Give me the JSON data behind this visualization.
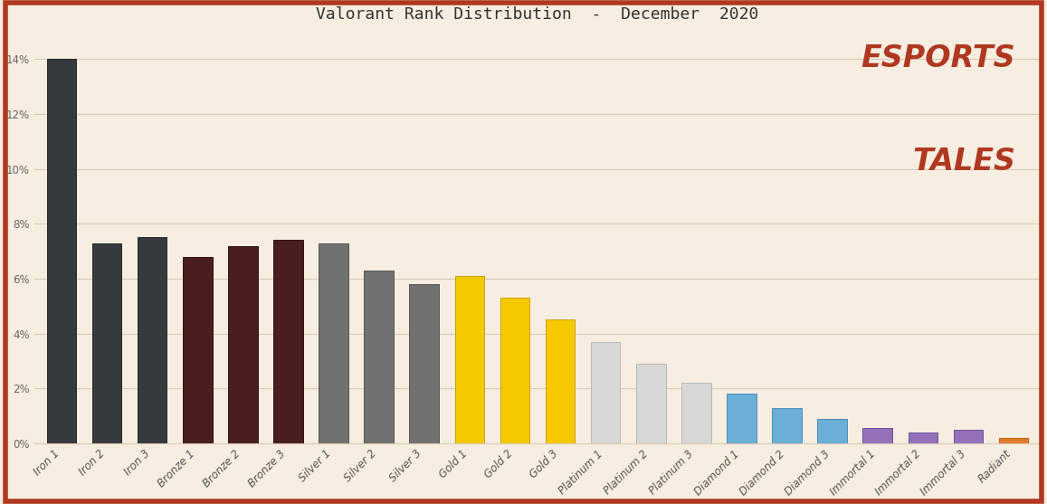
{
  "title": "Valorant Rank Distribution  -  December  2020",
  "categories": [
    "Iron 1",
    "Iron 2",
    "Iron 3",
    "Bronze 1",
    "Bronze 2",
    "Bronze 3",
    "Silver 1",
    "Silver 2",
    "Silver 3",
    "Gold 1",
    "Gold 2",
    "Gold 3",
    "Platinum 1",
    "Platinum 2",
    "Platinum 3",
    "Diamond 1",
    "Diamond 2",
    "Diamond 3",
    "Immortal 1",
    "Immortal 2",
    "Immortal 3",
    "Radiant"
  ],
  "values": [
    14.0,
    7.3,
    7.5,
    6.8,
    7.2,
    7.4,
    7.3,
    6.3,
    5.8,
    6.1,
    5.3,
    4.5,
    3.7,
    2.9,
    2.2,
    1.8,
    1.3,
    0.9,
    0.55,
    0.4,
    0.5,
    0.2
  ],
  "bar_colors": [
    "#353b3c",
    "#353b3c",
    "#353b3c",
    "#4a1e1e",
    "#4a1e1e",
    "#4a1e1e",
    "#717171",
    "#717171",
    "#717171",
    "#f5c800",
    "#f5c800",
    "#f5c800",
    "#d8d8d8",
    "#d8d8d8",
    "#d8d8d8",
    "#6baed6",
    "#6baed6",
    "#6baed6",
    "#9370b8",
    "#9370b8",
    "#9370b8",
    "#e07b2a"
  ],
  "bar_edgecolors": [
    "#222828",
    "#222828",
    "#222828",
    "#311010",
    "#311010",
    "#311010",
    "#555555",
    "#555555",
    "#555555",
    "#c8a200",
    "#c8a200",
    "#c8a200",
    "#b8b8b8",
    "#b8b8b8",
    "#b8b8b8",
    "#4a8bbf",
    "#4a8bbf",
    "#4a8bbf",
    "#6a50a0",
    "#6a50a0",
    "#6a50a0",
    "#c06010"
  ],
  "ylim": [
    0,
    15
  ],
  "yticks": [
    0,
    2,
    4,
    6,
    8,
    10,
    12,
    14
  ],
  "ytick_labels": [
    "0%",
    "2%",
    "4%",
    "6%",
    "8%",
    "10%",
    "12%",
    "14%"
  ],
  "background_color": "#f7ede0",
  "grid_color": "#d8c9b5",
  "title_fontsize": 13,
  "tick_fontsize": 8.5,
  "esports_text_color": "#b03820",
  "border_color": "#b03820",
  "border_linewidth": 4
}
